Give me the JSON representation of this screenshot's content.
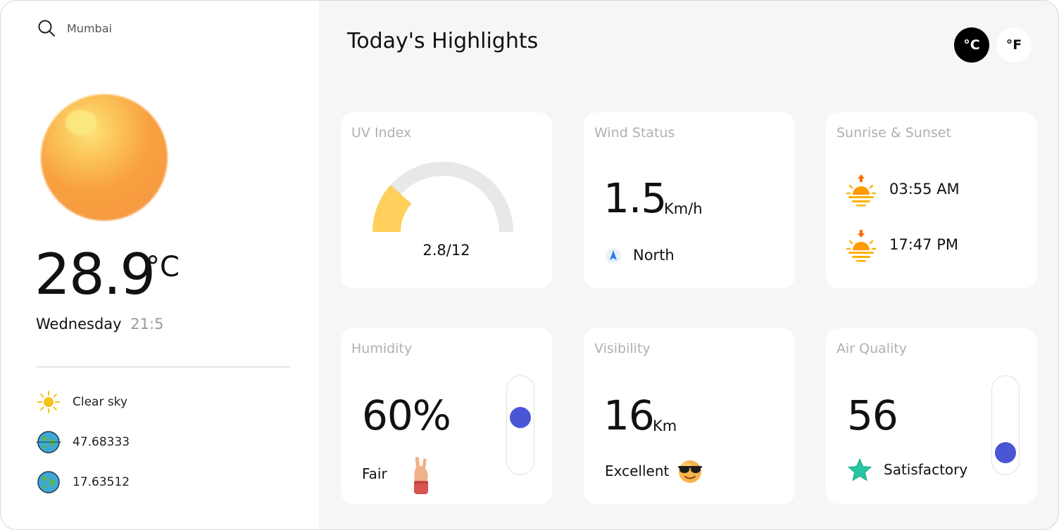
{
  "sidebar": {
    "search_value": "Mumbai",
    "temperature": "28.9",
    "temperature_unit": "°C",
    "day": "Wednesday",
    "time": "21:5",
    "condition": "Clear sky",
    "lon": "47.68333",
    "lat": "17.63512"
  },
  "main": {
    "title": "Today's Highlights",
    "units": {
      "celsius": "°C",
      "fahrenheit": "°F",
      "selected": "celsius"
    }
  },
  "cards": {
    "uv": {
      "title": "UV Index",
      "value": "2.8/12",
      "level": 0.2333
    },
    "wind": {
      "title": "Wind Status",
      "value": "1.5",
      "unit": "Km/h",
      "direction": "North"
    },
    "sun": {
      "title": "Sunrise & Sunset",
      "sunrise": "03:55 AM",
      "sunset": "17:47 PM"
    },
    "humidity": {
      "title": "Humidity",
      "value": "60%",
      "status": "Fair"
    },
    "visibility": {
      "title": "Visibility",
      "value": "16",
      "unit": "Km",
      "status": "Excellent"
    },
    "air": {
      "title": "Air Quality",
      "value": "56",
      "status": "Satisfactory"
    }
  },
  "colors": {
    "accent": "#4a55d6",
    "uv_fill": "#ffd05c",
    "sun": "#f89b3c",
    "dark": "#000000"
  },
  "icons": [
    "search-icon",
    "sun-icon",
    "globe-icon",
    "sunrise-icon",
    "sunset-icon",
    "navigation-arrow-icon",
    "hand-emoji-icon",
    "sunglasses-emoji-icon",
    "star-icon"
  ]
}
